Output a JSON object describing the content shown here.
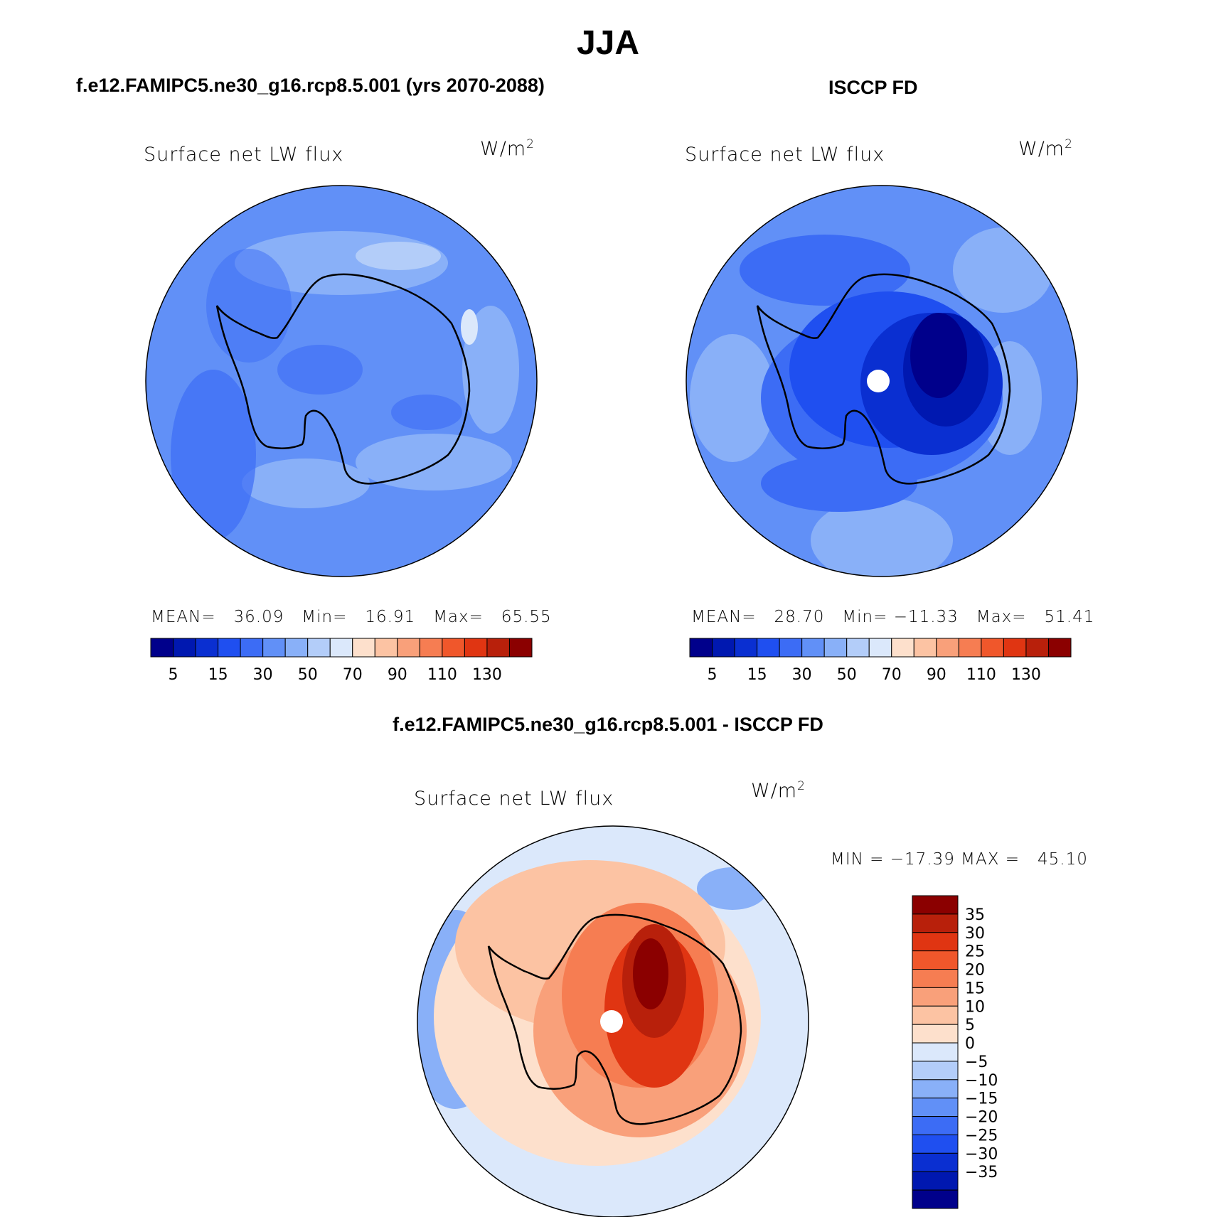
{
  "figure": {
    "title": "JJA",
    "panels": [
      {
        "case_title": "f.e12.FAMIPC5.ne30_g16.rcp8.5.001 (yrs 2070-2088)",
        "field_label": "Surface net LW flux",
        "units": "W/m",
        "units_exp": "2",
        "stats_text": "MEAN=   36.09   Min=   16.91   Max=   65.55",
        "mean": 36.09,
        "min": 16.91,
        "max": 65.55
      },
      {
        "case_title": "ISCCP FD",
        "field_label": "Surface net LW flux",
        "units": "W/m",
        "units_exp": "2",
        "stats_text": "MEAN=   28.70   Min= −11.33   Max=   51.41",
        "mean": 28.7,
        "min": -11.33,
        "max": 51.41
      },
      {
        "case_title": "f.e12.FAMIPC5.ne30_g16.rcp8.5.001 - ISCCP FD",
        "field_label": "Surface net LW flux",
        "units": "W/m",
        "units_exp": "2",
        "stats_text": "MIN = −17.39 MAX =   45.10",
        "min": -17.39,
        "max": 45.1
      }
    ]
  },
  "colorbar_abs": {
    "colors": [
      "#00008b",
      "#0018b0",
      "#0a2fd1",
      "#1f4ff0",
      "#3c6cf5",
      "#6190f7",
      "#89b0f8",
      "#b3cdf9",
      "#dbe8fb",
      "#fde0cc",
      "#fcc3a3",
      "#f9a07a",
      "#f67d52",
      "#f0572b",
      "#e03512",
      "#b8200b",
      "#8b0000"
    ],
    "tick_labels": [
      "5",
      "15",
      "30",
      "50",
      "70",
      "90",
      "110",
      "130"
    ]
  },
  "colorbar_diff": {
    "colors": [
      "#8b0000",
      "#b8200b",
      "#e03512",
      "#f0572b",
      "#f67d52",
      "#f9a07a",
      "#fcc3a3",
      "#fde0cc",
      "#dbe8fb",
      "#b3cdf9",
      "#89b0f8",
      "#6190f7",
      "#3c6cf5",
      "#1f4ff0",
      "#0a2fd1",
      "#0018b0",
      "#00008b"
    ],
    "tick_labels": [
      "35",
      "30",
      "25",
      "20",
      "15",
      "10",
      "5",
      "0",
      "−5",
      "−10",
      "−15",
      "−20",
      "−25",
      "−30",
      "−35"
    ]
  },
  "map_colors": {
    "pole_marker": "#ffffff",
    "coastline": "#000000"
  }
}
